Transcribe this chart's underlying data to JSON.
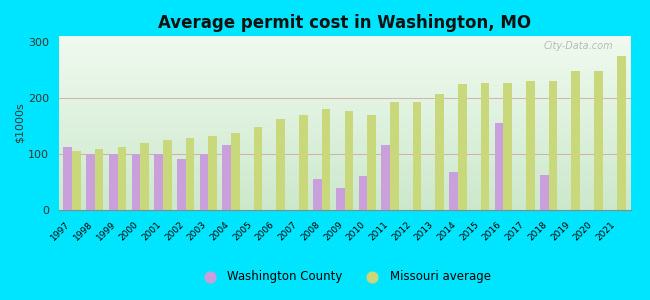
{
  "title": "Average permit cost in Washington, MO",
  "ylabel": "$1000s",
  "years": [
    1997,
    1998,
    1999,
    2000,
    2001,
    2002,
    2003,
    2004,
    2005,
    2006,
    2007,
    2008,
    2009,
    2010,
    2011,
    2012,
    2013,
    2014,
    2015,
    2016,
    2017,
    2018,
    2019,
    2020,
    2021
  ],
  "washington_county": [
    112,
    100,
    100,
    100,
    100,
    90,
    100,
    115,
    null,
    null,
    null,
    55,
    40,
    60,
    115,
    null,
    null,
    68,
    null,
    155,
    null,
    62,
    null,
    null,
    null
  ],
  "missouri_average": [
    105,
    108,
    113,
    120,
    125,
    128,
    132,
    137,
    148,
    162,
    170,
    180,
    177,
    170,
    192,
    193,
    207,
    225,
    227,
    227,
    230,
    230,
    248,
    248,
    275
  ],
  "washington_color": "#c9a0dc",
  "missouri_color": "#c8d87a",
  "background_outer": "#00e5ff",
  "ylim": [
    0,
    310
  ],
  "yticks": [
    0,
    100,
    200,
    300
  ]
}
